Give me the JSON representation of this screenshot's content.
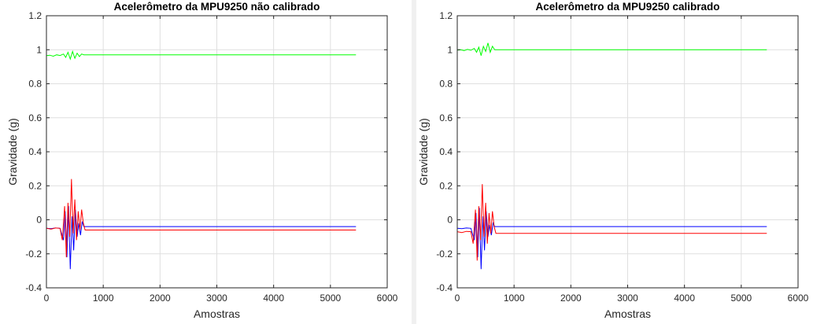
{
  "chart_data": [
    {
      "type": "line",
      "title": "Acelerômetro da MPU9250 não calibrado",
      "xlabel": "Amostras",
      "ylabel": "Gravidade (g)",
      "xlim": [
        0,
        6000
      ],
      "ylim": [
        -0.4,
        1.2
      ],
      "xticks": [
        "0",
        "1000",
        "2000",
        "3000",
        "4000",
        "5000",
        "6000"
      ],
      "yticks": [
        "-0.4",
        "-0.2",
        "0",
        "0.2",
        "0.4",
        "0.6",
        "0.8",
        "1",
        "1.2"
      ],
      "grid": true,
      "series": [
        {
          "color": "#00ff00",
          "x": [
            0,
            60,
            120,
            180,
            240,
            300,
            340,
            380,
            420,
            460,
            500,
            540,
            580,
            620,
            660,
            700,
            1000,
            2000,
            3000,
            4000,
            5000,
            5450
          ],
          "y": [
            0.965,
            0.968,
            0.962,
            0.97,
            0.966,
            0.975,
            0.955,
            0.985,
            0.945,
            0.99,
            0.95,
            0.98,
            0.96,
            0.975,
            0.97,
            0.97,
            0.97,
            0.97,
            0.97,
            0.97,
            0.97,
            0.97
          ]
        },
        {
          "color": "#0000ff",
          "x": [
            0,
            80,
            160,
            240,
            300,
            330,
            360,
            390,
            420,
            450,
            480,
            510,
            540,
            570,
            600,
            630,
            660,
            700,
            1000,
            2000,
            3000,
            4000,
            5000,
            5450
          ],
          "y": [
            -0.05,
            -0.052,
            -0.048,
            -0.05,
            -0.12,
            0.05,
            -0.22,
            0.08,
            -0.29,
            0.02,
            -0.18,
            0.06,
            -0.1,
            -0.02,
            -0.09,
            -0.01,
            -0.04,
            -0.04,
            -0.04,
            -0.04,
            -0.04,
            -0.04,
            -0.04,
            -0.04
          ]
        },
        {
          "color": "#ff0000",
          "x": [
            0,
            80,
            160,
            240,
            280,
            320,
            350,
            380,
            410,
            440,
            470,
            500,
            530,
            560,
            590,
            620,
            650,
            680,
            1000,
            2000,
            3000,
            4000,
            5000,
            5450
          ],
          "y": [
            -0.05,
            -0.055,
            -0.048,
            -0.05,
            -0.12,
            0.08,
            -0.22,
            0.1,
            -0.1,
            0.24,
            -0.08,
            0.12,
            -0.12,
            0.05,
            -0.06,
            0.06,
            -0.02,
            -0.06,
            -0.06,
            -0.06,
            -0.06,
            -0.06,
            -0.06,
            -0.06
          ]
        }
      ]
    },
    {
      "type": "line",
      "title": "Acelerômetro da MPU9250 calibrado",
      "xlabel": "Amostras",
      "ylabel": "Gravidade (g)",
      "xlim": [
        0,
        6000
      ],
      "ylim": [
        -0.4,
        1.2
      ],
      "xticks": [
        "0",
        "1000",
        "2000",
        "3000",
        "4000",
        "5000",
        "6000"
      ],
      "yticks": [
        "-0.4",
        "-0.2",
        "0",
        "0.2",
        "0.4",
        "0.6",
        "0.8",
        "1",
        "1.2"
      ],
      "grid": true,
      "series": [
        {
          "color": "#00ff00",
          "x": [
            0,
            60,
            120,
            180,
            240,
            300,
            340,
            380,
            420,
            460,
            500,
            540,
            580,
            620,
            660,
            700,
            1000,
            2000,
            3000,
            4000,
            5000,
            5450
          ],
          "y": [
            0.998,
            1.0,
            0.995,
            1.002,
            0.997,
            1.008,
            0.985,
            1.015,
            0.965,
            1.02,
            0.99,
            1.04,
            0.985,
            1.02,
            1.0,
            1.0,
            1.0,
            1.0,
            1.0,
            1.0,
            1.0,
            1.0
          ]
        },
        {
          "color": "#0000ff",
          "x": [
            0,
            80,
            160,
            240,
            300,
            330,
            360,
            390,
            420,
            450,
            480,
            510,
            540,
            570,
            600,
            630,
            660,
            700,
            1000,
            2000,
            3000,
            4000,
            5000,
            5450
          ],
          "y": [
            -0.05,
            -0.052,
            -0.048,
            -0.05,
            -0.12,
            0.04,
            -0.22,
            0.07,
            -0.29,
            0.02,
            -0.18,
            0.05,
            -0.1,
            -0.03,
            -0.09,
            -0.02,
            -0.04,
            -0.04,
            -0.04,
            -0.04,
            -0.04,
            -0.04,
            -0.04,
            -0.04
          ]
        },
        {
          "color": "#ff0000",
          "x": [
            0,
            80,
            160,
            240,
            280,
            320,
            350,
            380,
            410,
            440,
            470,
            500,
            530,
            560,
            590,
            620,
            650,
            680,
            1000,
            2000,
            3000,
            4000,
            5000,
            5450
          ],
          "y": [
            -0.07,
            -0.075,
            -0.068,
            -0.07,
            -0.14,
            0.06,
            -0.24,
            0.08,
            -0.12,
            0.21,
            -0.1,
            0.1,
            -0.14,
            0.04,
            -0.08,
            0.05,
            -0.04,
            -0.08,
            -0.08,
            -0.08,
            -0.08,
            -0.08,
            -0.08,
            -0.08
          ]
        }
      ]
    }
  ]
}
